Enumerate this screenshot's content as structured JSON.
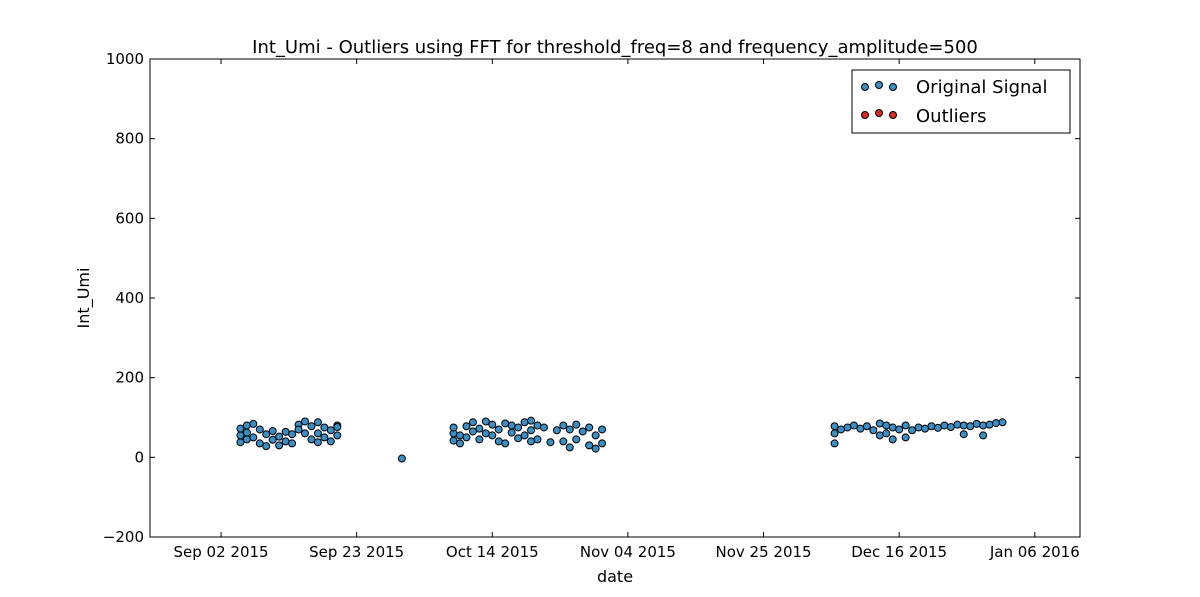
{
  "chart_data": {
    "type": "scatter",
    "title": "Int_Umi - Outliers using FFT for threshold_freq=8 and frequency_amplitude=500",
    "xlabel": "date",
    "ylabel": "Int_Umi",
    "ylim": [
      -200,
      1000
    ],
    "yticks": [
      -200,
      0,
      200,
      400,
      600,
      800,
      1000
    ],
    "xlim": [
      "2015-08-22",
      "2016-01-13"
    ],
    "xticks": [
      {
        "date": "2015-09-02",
        "label": "Sep 02 2015"
      },
      {
        "date": "2015-09-23",
        "label": "Sep 23 2015"
      },
      {
        "date": "2015-10-14",
        "label": "Oct 14 2015"
      },
      {
        "date": "2015-11-04",
        "label": "Nov 04 2015"
      },
      {
        "date": "2015-11-25",
        "label": "Nov 25 2015"
      },
      {
        "date": "2015-12-16",
        "label": "Dec 16 2015"
      },
      {
        "date": "2016-01-06",
        "label": "Jan 06 2016"
      }
    ],
    "grid": false,
    "legend_position": "top-right",
    "series": [
      {
        "name": "Original Signal",
        "color": "#3a8fc4",
        "points": [
          {
            "x": "2015-09-05",
            "y": 38
          },
          {
            "x": "2015-09-05",
            "y": 55
          },
          {
            "x": "2015-09-05",
            "y": 72
          },
          {
            "x": "2015-09-06",
            "y": 45
          },
          {
            "x": "2015-09-06",
            "y": 80
          },
          {
            "x": "2015-09-06",
            "y": 62
          },
          {
            "x": "2015-09-07",
            "y": 84
          },
          {
            "x": "2015-09-07",
            "y": 50
          },
          {
            "x": "2015-09-08",
            "y": 70
          },
          {
            "x": "2015-09-08",
            "y": 35
          },
          {
            "x": "2015-09-09",
            "y": 58
          },
          {
            "x": "2015-09-09",
            "y": 28
          },
          {
            "x": "2015-09-10",
            "y": 44
          },
          {
            "x": "2015-09-10",
            "y": 66
          },
          {
            "x": "2015-09-11",
            "y": 30
          },
          {
            "x": "2015-09-11",
            "y": 52
          },
          {
            "x": "2015-09-12",
            "y": 40
          },
          {
            "x": "2015-09-12",
            "y": 64
          },
          {
            "x": "2015-09-13",
            "y": 35
          },
          {
            "x": "2015-09-13",
            "y": 58
          },
          {
            "x": "2015-09-14",
            "y": 82
          },
          {
            "x": "2015-09-14",
            "y": 70
          },
          {
            "x": "2015-09-15",
            "y": 90
          },
          {
            "x": "2015-09-15",
            "y": 60
          },
          {
            "x": "2015-09-16",
            "y": 78
          },
          {
            "x": "2015-09-16",
            "y": 45
          },
          {
            "x": "2015-09-17",
            "y": 88
          },
          {
            "x": "2015-09-17",
            "y": 60
          },
          {
            "x": "2015-09-17",
            "y": 38
          },
          {
            "x": "2015-09-18",
            "y": 75
          },
          {
            "x": "2015-09-18",
            "y": 50
          },
          {
            "x": "2015-09-19",
            "y": 68
          },
          {
            "x": "2015-09-19",
            "y": 40
          },
          {
            "x": "2015-09-20",
            "y": 80
          },
          {
            "x": "2015-09-20",
            "y": 55
          },
          {
            "x": "2015-09-20",
            "y": 76
          },
          {
            "x": "2015-09-30",
            "y": -3
          },
          {
            "x": "2015-10-08",
            "y": 42
          },
          {
            "x": "2015-10-08",
            "y": 60
          },
          {
            "x": "2015-10-08",
            "y": 75
          },
          {
            "x": "2015-10-09",
            "y": 55
          },
          {
            "x": "2015-10-09",
            "y": 35
          },
          {
            "x": "2015-10-10",
            "y": 78
          },
          {
            "x": "2015-10-10",
            "y": 50
          },
          {
            "x": "2015-10-11",
            "y": 88
          },
          {
            "x": "2015-10-11",
            "y": 65
          },
          {
            "x": "2015-10-12",
            "y": 45
          },
          {
            "x": "2015-10-12",
            "y": 72
          },
          {
            "x": "2015-10-13",
            "y": 90
          },
          {
            "x": "2015-10-13",
            "y": 60
          },
          {
            "x": "2015-10-14",
            "y": 82
          },
          {
            "x": "2015-10-14",
            "y": 55
          },
          {
            "x": "2015-10-15",
            "y": 40
          },
          {
            "x": "2015-10-15",
            "y": 70
          },
          {
            "x": "2015-10-16",
            "y": 85
          },
          {
            "x": "2015-10-16",
            "y": 35
          },
          {
            "x": "2015-10-17",
            "y": 62
          },
          {
            "x": "2015-10-17",
            "y": 80
          },
          {
            "x": "2015-10-18",
            "y": 48
          },
          {
            "x": "2015-10-18",
            "y": 75
          },
          {
            "x": "2015-10-19",
            "y": 88
          },
          {
            "x": "2015-10-19",
            "y": 55
          },
          {
            "x": "2015-10-20",
            "y": 92
          },
          {
            "x": "2015-10-20",
            "y": 40
          },
          {
            "x": "2015-10-20",
            "y": 68
          },
          {
            "x": "2015-10-21",
            "y": 80
          },
          {
            "x": "2015-10-21",
            "y": 45
          },
          {
            "x": "2015-10-22",
            "y": 75
          },
          {
            "x": "2015-10-23",
            "y": 38
          },
          {
            "x": "2015-10-24",
            "y": 68
          },
          {
            "x": "2015-10-25",
            "y": 40
          },
          {
            "x": "2015-10-25",
            "y": 80
          },
          {
            "x": "2015-10-26",
            "y": 25
          },
          {
            "x": "2015-10-26",
            "y": 70
          },
          {
            "x": "2015-10-27",
            "y": 45
          },
          {
            "x": "2015-10-27",
            "y": 82
          },
          {
            "x": "2015-10-28",
            "y": 65
          },
          {
            "x": "2015-10-29",
            "y": 30
          },
          {
            "x": "2015-10-29",
            "y": 75
          },
          {
            "x": "2015-10-30",
            "y": 22
          },
          {
            "x": "2015-10-30",
            "y": 55
          },
          {
            "x": "2015-10-31",
            "y": 35
          },
          {
            "x": "2015-10-31",
            "y": 70
          },
          {
            "x": "2015-12-06",
            "y": 35
          },
          {
            "x": "2015-12-06",
            "y": 60
          },
          {
            "x": "2015-12-06",
            "y": 78
          },
          {
            "x": "2015-12-07",
            "y": 70
          },
          {
            "x": "2015-12-08",
            "y": 75
          },
          {
            "x": "2015-12-09",
            "y": 80
          },
          {
            "x": "2015-12-10",
            "y": 72
          },
          {
            "x": "2015-12-11",
            "y": 78
          },
          {
            "x": "2015-12-12",
            "y": 68
          },
          {
            "x": "2015-12-13",
            "y": 85
          },
          {
            "x": "2015-12-13",
            "y": 55
          },
          {
            "x": "2015-12-14",
            "y": 80
          },
          {
            "x": "2015-12-14",
            "y": 60
          },
          {
            "x": "2015-12-15",
            "y": 45
          },
          {
            "x": "2015-12-15",
            "y": 75
          },
          {
            "x": "2015-12-16",
            "y": 70
          },
          {
            "x": "2015-12-17",
            "y": 50
          },
          {
            "x": "2015-12-17",
            "y": 80
          },
          {
            "x": "2015-12-18",
            "y": 68
          },
          {
            "x": "2015-12-19",
            "y": 75
          },
          {
            "x": "2015-12-20",
            "y": 72
          },
          {
            "x": "2015-12-21",
            "y": 78
          },
          {
            "x": "2015-12-22",
            "y": 74
          },
          {
            "x": "2015-12-23",
            "y": 80
          },
          {
            "x": "2015-12-24",
            "y": 76
          },
          {
            "x": "2015-12-25",
            "y": 82
          },
          {
            "x": "2015-12-26",
            "y": 58
          },
          {
            "x": "2015-12-26",
            "y": 80
          },
          {
            "x": "2015-12-27",
            "y": 78
          },
          {
            "x": "2015-12-28",
            "y": 84
          },
          {
            "x": "2015-12-29",
            "y": 55
          },
          {
            "x": "2015-12-29",
            "y": 80
          },
          {
            "x": "2015-12-30",
            "y": 82
          },
          {
            "x": "2015-12-31",
            "y": 86
          },
          {
            "x": "2016-01-01",
            "y": 88
          }
        ]
      },
      {
        "name": "Outliers",
        "color": "#d62d20",
        "points": []
      }
    ]
  }
}
